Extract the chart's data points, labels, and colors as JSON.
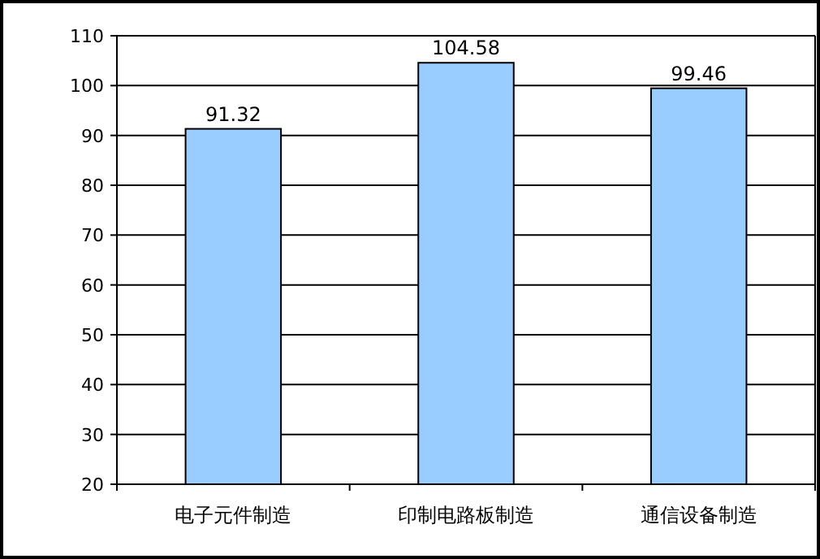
{
  "chart_data": {
    "type": "bar",
    "categories": [
      "电子元件制造",
      "印制电路板制造",
      "通信设备制造"
    ],
    "values": [
      91.32,
      104.58,
      99.46
    ],
    "color": "#99ccff",
    "ylim": [
      20,
      110
    ],
    "yticks": [
      20,
      30,
      40,
      50,
      60,
      70,
      80,
      90,
      100,
      110
    ],
    "grid": "y",
    "data_labels": true
  }
}
